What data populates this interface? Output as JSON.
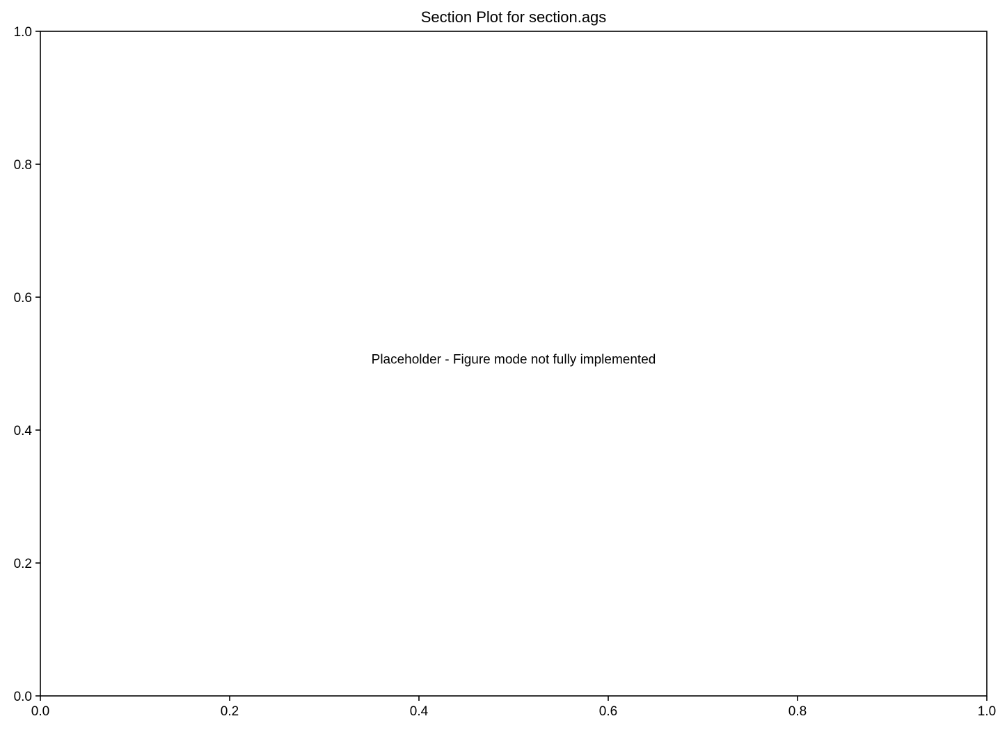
{
  "chart_data": {
    "type": "scatter",
    "title": "Section Plot for section.ags",
    "xlabel": "",
    "ylabel": "",
    "xlim": [
      0.0,
      1.0
    ],
    "ylim": [
      0.0,
      1.0
    ],
    "x_ticks": [
      "0.0",
      "0.2",
      "0.4",
      "0.6",
      "0.8",
      "1.0"
    ],
    "y_ticks": [
      "0.0",
      "0.2",
      "0.4",
      "0.6",
      "0.8",
      "1.0"
    ],
    "grid": false,
    "legend": null,
    "series": [],
    "annotation": {
      "text": "Placeholder - Figure mode not fully implemented",
      "x": 0.5,
      "y": 0.5
    }
  }
}
